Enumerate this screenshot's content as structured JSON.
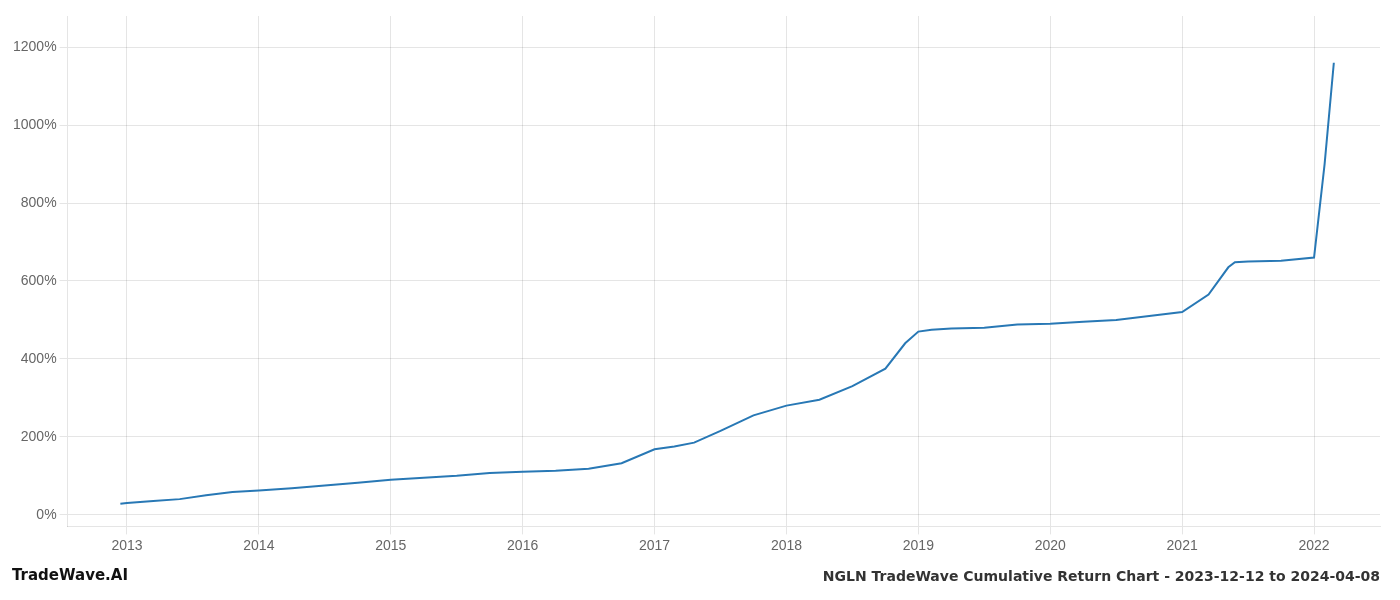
{
  "chart_data": {
    "type": "line",
    "title": "NGLN TradeWave Cumulative Return Chart - 2023-12-12 to 2024-04-08",
    "annotations": [
      "TradeWave.AI"
    ],
    "x": [
      2012.95,
      2013.0,
      2013.2,
      2013.4,
      2013.6,
      2013.8,
      2014.0,
      2014.25,
      2014.5,
      2014.75,
      2015.0,
      2015.25,
      2015.5,
      2015.75,
      2016.0,
      2016.25,
      2016.5,
      2016.75,
      2017.0,
      2017.15,
      2017.3,
      2017.5,
      2017.75,
      2018.0,
      2018.25,
      2018.5,
      2018.75,
      2018.9,
      2019.0,
      2019.1,
      2019.25,
      2019.5,
      2019.75,
      2020.0,
      2020.25,
      2020.5,
      2020.75,
      2021.0,
      2021.2,
      2021.35,
      2021.4,
      2021.5,
      2021.75,
      2022.0,
      2022.08,
      2022.15
    ],
    "values": [
      28,
      30,
      35,
      40,
      50,
      58,
      62,
      68,
      75,
      82,
      90,
      95,
      100,
      107,
      110,
      113,
      118,
      132,
      168,
      175,
      185,
      215,
      255,
      280,
      295,
      330,
      375,
      440,
      470,
      475,
      478,
      480,
      488,
      490,
      495,
      500,
      510,
      520,
      565,
      635,
      648,
      650,
      652,
      660,
      900,
      1160
    ],
    "color": "#2878b5",
    "xlim": [
      2012.55,
      2022.5
    ],
    "xticks": [
      2013,
      2014,
      2015,
      2016,
      2017,
      2018,
      2019,
      2020,
      2021,
      2022
    ],
    "ylim": [
      -30,
      1280
    ],
    "yticks": [
      {
        "value": 0,
        "label": "0%"
      },
      {
        "value": 200,
        "label": "200%"
      },
      {
        "value": 400,
        "label": "400%"
      },
      {
        "value": 600,
        "label": "600%"
      },
      {
        "value": 800,
        "label": "800%"
      },
      {
        "value": 1000,
        "label": "1000%"
      },
      {
        "value": 1200,
        "label": "1200%"
      }
    ],
    "grid": true
  }
}
